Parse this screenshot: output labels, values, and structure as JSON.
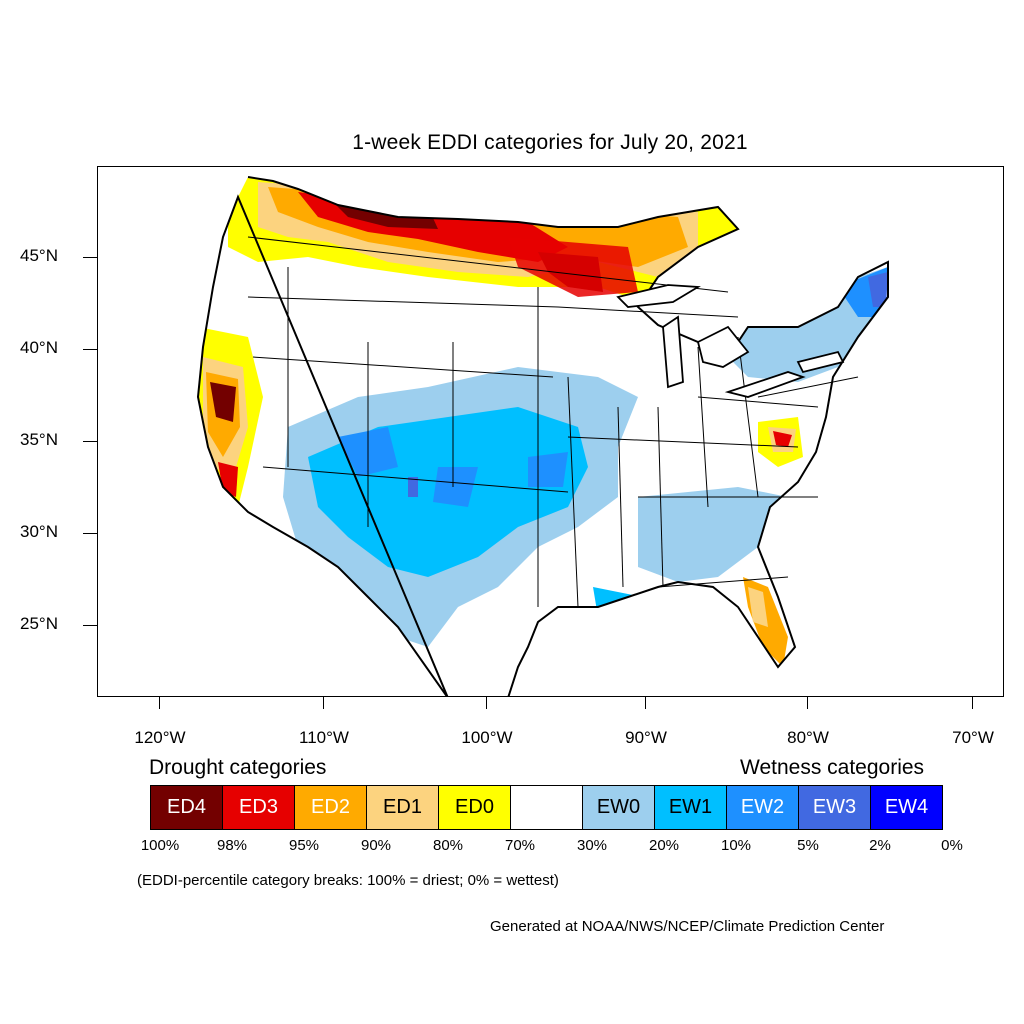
{
  "title": "1-week EDDI categories for July 20, 2021",
  "lat_labels": [
    "45°N",
    "40°N",
    "35°N",
    "30°N",
    "25°N"
  ],
  "lon_labels": [
    "120°W",
    "110°W",
    "100°W",
    "90°W",
    "80°W",
    "70°W"
  ],
  "legend": {
    "drought_heading": "Drought categories",
    "wetness_heading": "Wetness categories",
    "categories": [
      {
        "label": "ED4",
        "color": "#730000",
        "text_color": "#ffffff"
      },
      {
        "label": "ED3",
        "color": "#e60000",
        "text_color": "#ffffff"
      },
      {
        "label": "ED2",
        "color": "#ffaa00",
        "text_color": "#ffffff"
      },
      {
        "label": "ED1",
        "color": "#fcd37f",
        "text_color": "#000000"
      },
      {
        "label": "ED0",
        "color": "#ffff00",
        "text_color": "#000000"
      },
      {
        "label": "",
        "color": "#ffffff",
        "text_color": "#000000"
      },
      {
        "label": "EW0",
        "color": "#9dcfee",
        "text_color": "#000000"
      },
      {
        "label": "EW1",
        "color": "#00bfff",
        "text_color": "#000000"
      },
      {
        "label": "EW2",
        "color": "#1e90ff",
        "text_color": "#ffffff"
      },
      {
        "label": "EW3",
        "color": "#4169e1",
        "text_color": "#ffffff"
      },
      {
        "label": "EW4",
        "color": "#0000ff",
        "text_color": "#ffffff"
      }
    ],
    "percentiles": [
      "100%",
      "98%",
      "95%",
      "90%",
      "80%",
      "70%",
      "30%",
      "20%",
      "10%",
      "5%",
      "2%",
      "0%"
    ]
  },
  "note": "(EDDI-percentile category breaks: 100% = driest; 0% = wettest)",
  "credit": "Generated at NOAA/NWS/NCEP/Climate Prediction Center"
}
